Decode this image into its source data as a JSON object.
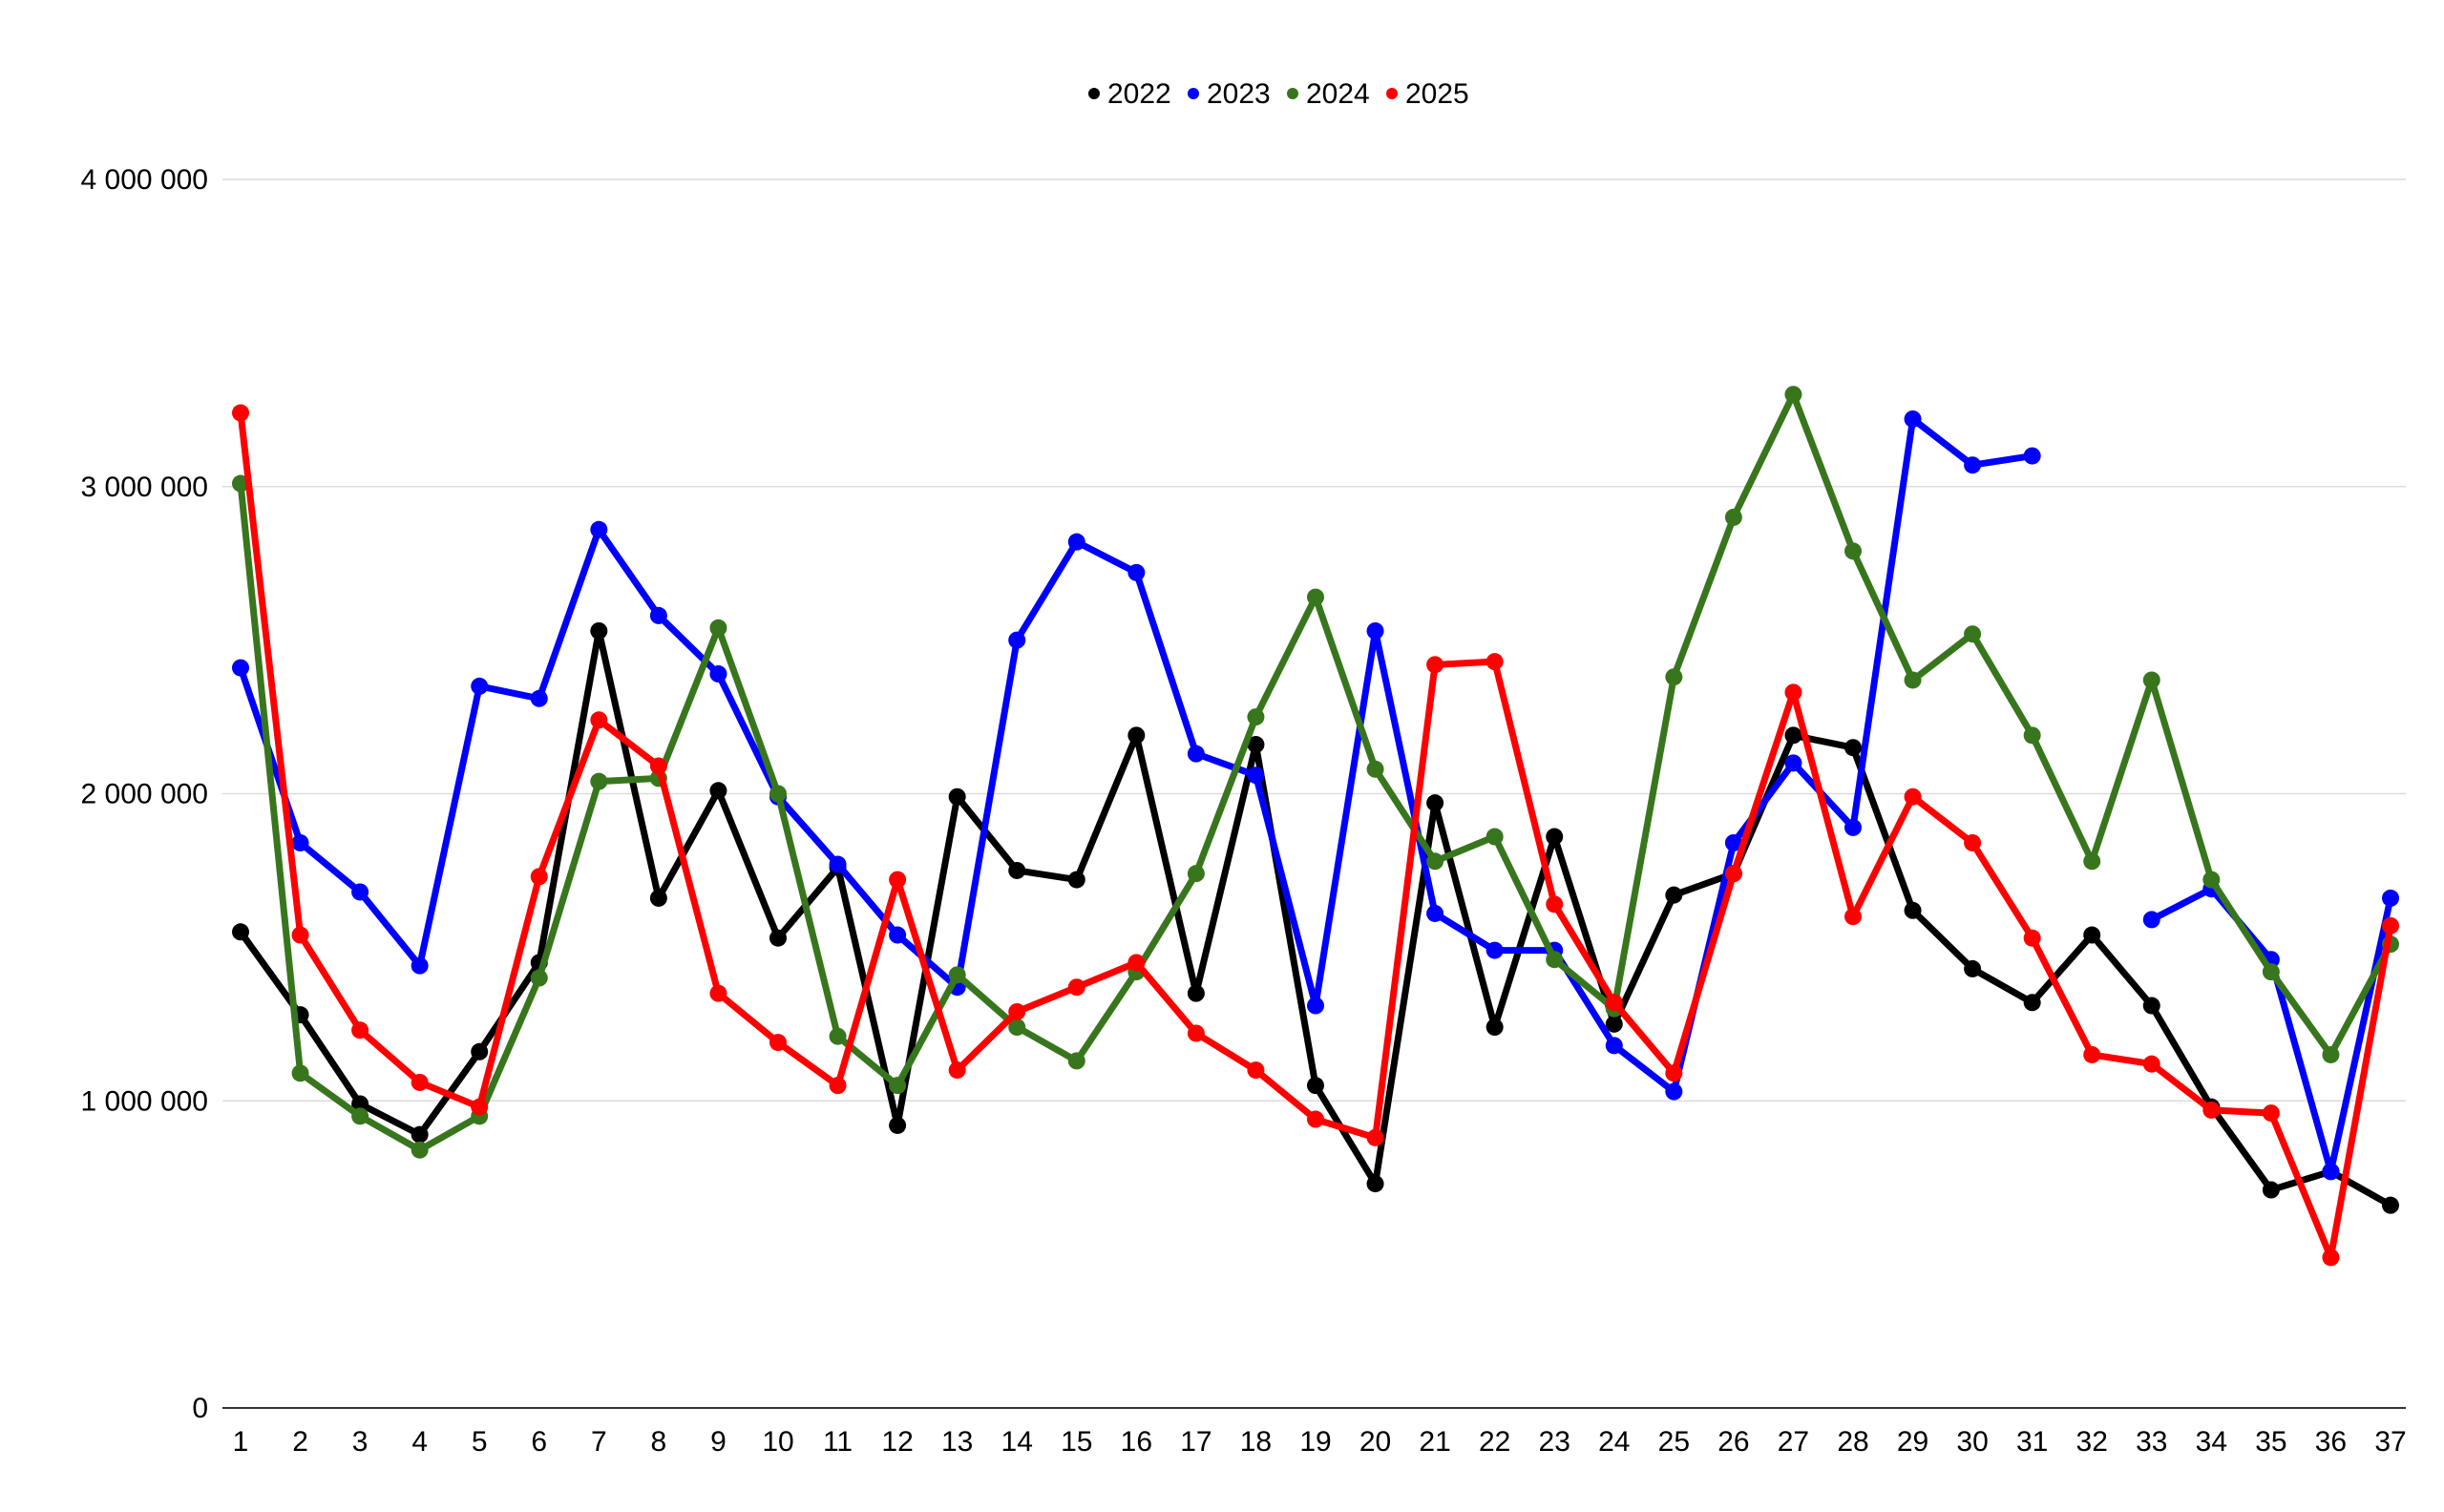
{
  "chart_data": {
    "type": "line",
    "title": "",
    "xlabel": "",
    "ylabel": "",
    "categories": [
      "1",
      "2",
      "3",
      "4",
      "5",
      "6",
      "7",
      "8",
      "9",
      "10",
      "11",
      "12",
      "13",
      "14",
      "15",
      "16",
      "17",
      "18",
      "19",
      "20",
      "21",
      "22",
      "23",
      "24",
      "25",
      "26",
      "27",
      "28",
      "29",
      "30",
      "31",
      "32",
      "33",
      "34",
      "35",
      "36",
      "37"
    ],
    "ylim": [
      0,
      4000000
    ],
    "yticks": [
      0,
      1000000,
      2000000,
      3000000,
      4000000
    ],
    "ytick_labels": [
      "0",
      "1 000 000",
      "2 000 000",
      "3 000 000",
      "4 000 000"
    ],
    "grid": true,
    "legend_position": "top",
    "series": [
      {
        "name": "2022",
        "color": "#000000",
        "values": [
          1550000,
          1280000,
          990000,
          890000,
          1160000,
          1450000,
          2530000,
          1660000,
          2010000,
          1530000,
          1760000,
          920000,
          1990000,
          1750000,
          1720000,
          2190000,
          1350000,
          2160000,
          1050000,
          730000,
          1970000,
          1240000,
          1860000,
          1250000,
          1670000,
          1740000,
          2190000,
          2150000,
          1620000,
          1430000,
          1320000,
          1540000,
          1310000,
          980000,
          710000,
          770000,
          660000
        ]
      },
      {
        "name": "2023",
        "color": "#0000ff",
        "values": [
          2410000,
          1840000,
          1680000,
          1440000,
          2350000,
          2310000,
          2860000,
          2580000,
          2390000,
          1990000,
          1770000,
          1540000,
          1370000,
          2500000,
          2820000,
          2720000,
          2130000,
          2060000,
          1310000,
          2530000,
          1610000,
          1490000,
          1490000,
          1180000,
          1030000,
          1840000,
          2100000,
          1890000,
          3220000,
          3070000,
          3100000,
          null,
          1590000,
          1690000,
          1460000,
          770000,
          1660000
        ]
      },
      {
        "name": "2024",
        "color": "#38761d",
        "values": [
          3010000,
          1090000,
          950000,
          840000,
          950000,
          1400000,
          2040000,
          2050000,
          2540000,
          2000000,
          1210000,
          1050000,
          1410000,
          1240000,
          1130000,
          1420000,
          1740000,
          2250000,
          2640000,
          2080000,
          1780000,
          1860000,
          1460000,
          1300000,
          2380000,
          2900000,
          3300000,
          2790000,
          2370000,
          2520000,
          2190000,
          1780000,
          2370000,
          1720000,
          1420000,
          1150000,
          1510000
        ]
      },
      {
        "name": "2025",
        "color": "#ff0000",
        "values": [
          3240000,
          1540000,
          1230000,
          1060000,
          980000,
          1730000,
          2240000,
          2090000,
          1350000,
          1190000,
          1050000,
          1720000,
          1100000,
          1290000,
          1370000,
          1450000,
          1220000,
          1100000,
          940000,
          880000,
          2420000,
          2430000,
          1640000,
          1320000,
          1090000,
          1740000,
          2330000,
          1600000,
          1990000,
          1840000,
          1530000,
          1150000,
          1120000,
          970000,
          960000,
          490000,
          1570000
        ]
      }
    ]
  }
}
